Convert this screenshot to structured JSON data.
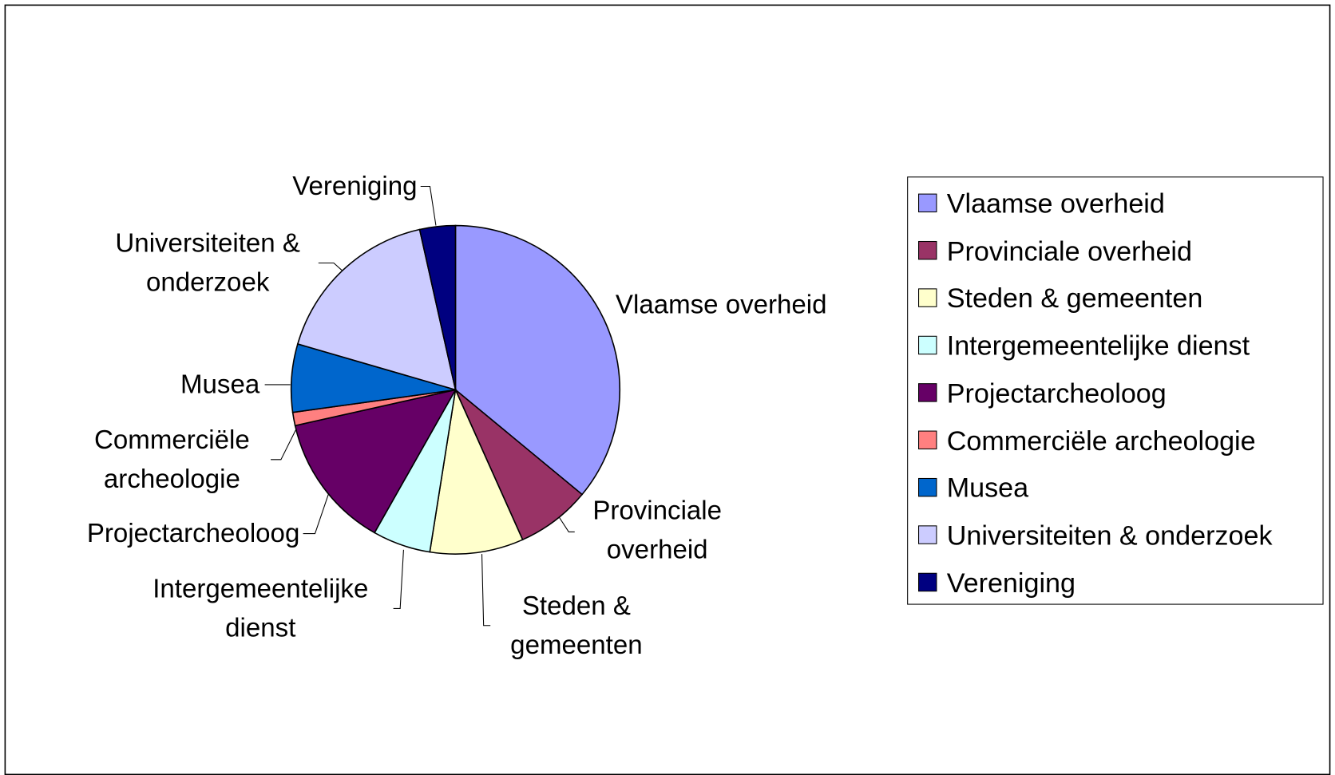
{
  "chart_data": {
    "type": "pie",
    "categories": [
      "Vlaamse overheid",
      "Provinciale overheid",
      "Steden & gemeenten",
      "Intergemeentelijke dienst",
      "Projectarcheoloog",
      "Commerciële archeologie",
      "Musea",
      "Universiteiten & onderzoek",
      "Vereniging"
    ],
    "values": [
      36,
      7.3,
      9.2,
      5.7,
      13.3,
      1.3,
      6.7,
      17,
      3.5
    ],
    "colors": [
      "#9999ff",
      "#993366",
      "#ffffcc",
      "#ccffff",
      "#660066",
      "#ff8080",
      "#0066cc",
      "#ccccff",
      "#000080"
    ],
    "legend": "right"
  }
}
